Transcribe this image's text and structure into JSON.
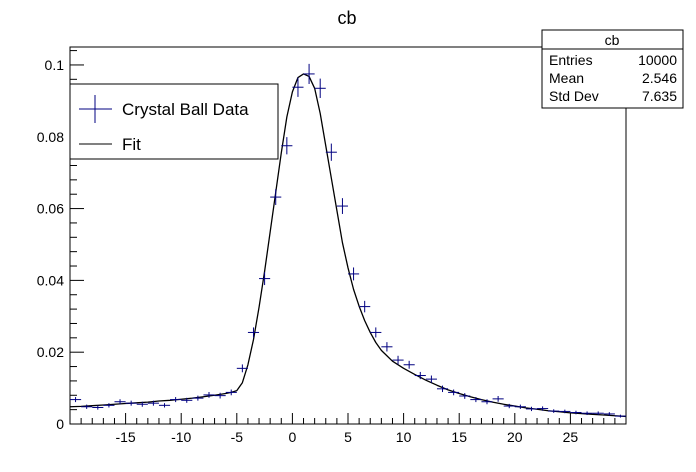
{
  "chart_data": {
    "type": "scatter",
    "title": "cb",
    "xlabel": "",
    "ylabel": "",
    "xlim": [
      -20,
      30
    ],
    "ylim": [
      0,
      0.105
    ],
    "x_ticks": [
      -15,
      -10,
      -5,
      0,
      5,
      10,
      15,
      20,
      25
    ],
    "y_ticks": [
      0,
      0.02,
      0.04,
      0.06,
      0.08,
      0.1
    ],
    "y_tick_labels": [
      "0",
      "0.02",
      "0.04",
      "0.06",
      "0.08",
      "0.1"
    ],
    "legend": {
      "placement": "top-left",
      "entries": [
        {
          "label": "Crystal Ball Data",
          "style": "errorbar",
          "color": "#000080"
        },
        {
          "label": "Fit",
          "style": "line",
          "color": "#000000"
        }
      ]
    },
    "stats_box": {
      "title": "cb",
      "placement": "top-right",
      "rows": [
        {
          "label": "Entries",
          "value": "10000"
        },
        {
          "label": "Mean",
          "value": "2.546"
        },
        {
          "label": "Std Dev",
          "value": "7.635"
        }
      ]
    },
    "series": [
      {
        "name": "Crystal Ball Data",
        "color": "#000080",
        "x_halfwidth": 0.5,
        "x": [
          -19.5,
          -18.5,
          -17.5,
          -16.5,
          -15.5,
          -14.5,
          -13.5,
          -12.5,
          -11.5,
          -10.5,
          -9.5,
          -8.5,
          -7.5,
          -6.5,
          -5.5,
          -4.5,
          -3.5,
          -2.5,
          -1.5,
          -0.5,
          0.5,
          1.5,
          2.5,
          3.5,
          4.5,
          5.5,
          6.5,
          7.5,
          8.5,
          9.5,
          10.5,
          11.5,
          12.5,
          13.5,
          14.5,
          15.5,
          16.5,
          17.5,
          18.5,
          19.5,
          20.5,
          21.5,
          22.5,
          23.5,
          24.5,
          25.5,
          26.5,
          27.5,
          28.5,
          29.5
        ],
        "y": [
          0.0068,
          0.0048,
          0.0046,
          0.0052,
          0.0062,
          0.0058,
          0.0055,
          0.0058,
          0.0052,
          0.0068,
          0.0066,
          0.0072,
          0.0081,
          0.0079,
          0.0088,
          0.0155,
          0.0255,
          0.0405,
          0.0632,
          0.0775,
          0.0938,
          0.0975,
          0.0935,
          0.0757,
          0.0607,
          0.0418,
          0.0327,
          0.0255,
          0.0215,
          0.0178,
          0.0165,
          0.0135,
          0.0125,
          0.0098,
          0.0088,
          0.0078,
          0.0068,
          0.0062,
          0.007,
          0.005,
          0.0048,
          0.0042,
          0.0043,
          0.0036,
          0.0035,
          0.0032,
          0.003,
          0.003,
          0.0028,
          0.0022
        ],
        "y_error": [
          0.0007,
          0.0006,
          0.0006,
          0.0006,
          0.0007,
          0.0007,
          0.0007,
          0.0007,
          0.0006,
          0.0007,
          0.0007,
          0.0007,
          0.0008,
          0.0008,
          0.0008,
          0.0011,
          0.0014,
          0.0018,
          0.0022,
          0.0024,
          0.0027,
          0.0028,
          0.0027,
          0.0024,
          0.0022,
          0.0018,
          0.0016,
          0.0014,
          0.0013,
          0.0012,
          0.0011,
          0.001,
          0.001,
          0.0009,
          0.0008,
          0.0008,
          0.0007,
          0.0007,
          0.0008,
          0.0006,
          0.0006,
          0.0006,
          0.0006,
          0.0005,
          0.0005,
          0.0005,
          0.0005,
          0.0005,
          0.0005,
          0.0004
        ]
      },
      {
        "name": "Fit",
        "color": "#000000",
        "style": "line",
        "x": [
          -20,
          -19,
          -18,
          -17,
          -16,
          -15,
          -14,
          -13,
          -12,
          -11,
          -10,
          -9,
          -8,
          -7,
          -6,
          -5.5,
          -5,
          -4.5,
          -4,
          -3.5,
          -3,
          -2.5,
          -2,
          -1.5,
          -1,
          -0.5,
          0,
          0.5,
          1,
          1.5,
          2,
          2.5,
          3,
          3.5,
          4,
          4.5,
          5,
          5.5,
          6,
          6.5,
          7,
          7.5,
          8,
          9,
          10,
          11,
          12,
          13,
          14,
          15,
          16,
          17,
          18,
          19,
          20,
          21,
          22,
          23,
          24,
          25,
          26,
          27,
          28,
          29,
          30
        ],
        "y": [
          0.0048,
          0.0049,
          0.0051,
          0.0053,
          0.0055,
          0.0057,
          0.0059,
          0.0061,
          0.0064,
          0.0066,
          0.0069,
          0.0072,
          0.0076,
          0.008,
          0.0085,
          0.0088,
          0.0093,
          0.0115,
          0.0165,
          0.0235,
          0.0325,
          0.0425,
          0.0535,
          0.0645,
          0.0755,
          0.0855,
          0.0925,
          0.0965,
          0.0975,
          0.0968,
          0.0935,
          0.0865,
          0.0775,
          0.0685,
          0.0595,
          0.0505,
          0.0435,
          0.0375,
          0.0328,
          0.0288,
          0.0255,
          0.0227,
          0.0205,
          0.0175,
          0.0155,
          0.0138,
          0.0122,
          0.0108,
          0.0095,
          0.0085,
          0.0076,
          0.0068,
          0.0061,
          0.0055,
          0.005,
          0.0045,
          0.0041,
          0.0037,
          0.0034,
          0.0031,
          0.0029,
          0.0027,
          0.0025,
          0.0023,
          0.0021
        ]
      }
    ]
  }
}
